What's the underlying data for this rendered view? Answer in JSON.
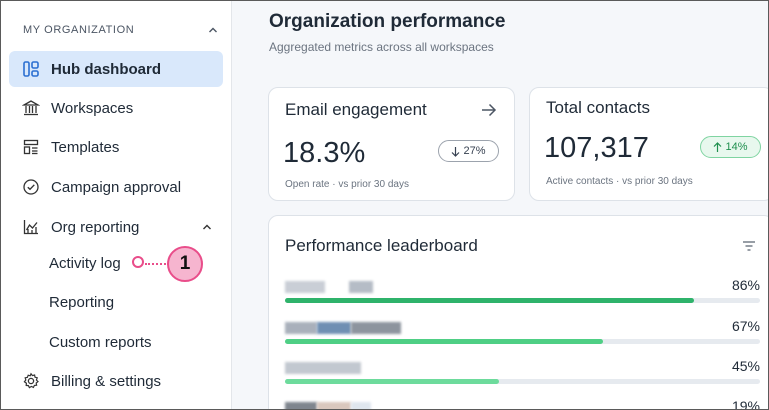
{
  "sidebar": {
    "section_title": "MY ORGANIZATION",
    "items": [
      {
        "label": "Hub dashboard",
        "icon": "hub-dashboard-icon",
        "active": true
      },
      {
        "label": "Workspaces",
        "icon": "workspaces-icon"
      },
      {
        "label": "Templates",
        "icon": "templates-icon"
      },
      {
        "label": "Campaign approval",
        "icon": "campaign-approval-icon"
      },
      {
        "label": "Org reporting",
        "icon": "org-reporting-icon",
        "expanded": true
      }
    ],
    "sub_items": [
      {
        "label": "Activity log"
      },
      {
        "label": "Reporting"
      },
      {
        "label": "Custom reports"
      }
    ],
    "billing": {
      "label": "Billing & settings",
      "icon": "gear-icon"
    }
  },
  "annotation": {
    "number": "1"
  },
  "main": {
    "title": "Organization performance",
    "subtitle": "Aggregated metrics across all workspaces",
    "email": {
      "title": "Email engagement",
      "value": "18.3%",
      "change": "27%",
      "change_direction": "down",
      "meta": "Open rate · vs prior 30 days"
    },
    "contacts": {
      "title": "Total contacts",
      "value": "107,317",
      "change": "14%",
      "change_direction": "up",
      "meta": "Active contacts · vs prior 30 days"
    },
    "leaderboard": {
      "title": "Performance leaderboard",
      "rows": [
        {
          "name": "",
          "value": 86,
          "label": "86%"
        },
        {
          "name": "",
          "value": 67,
          "label": "67%"
        },
        {
          "name": "",
          "value": 45,
          "label": "45%"
        },
        {
          "name": "",
          "value": 19,
          "label": "19%"
        }
      ]
    }
  },
  "colors": {
    "accent": "#d9e8fb",
    "bar_dark": "#2fb36b",
    "bar_mid": "#4fcf85",
    "bar_light": "#6ddb9c",
    "marker": "#e94d8a",
    "marker_fill": "#f6b5cf",
    "up_green": "#1f8f4e",
    "up_bg": "#e8f8ee"
  }
}
